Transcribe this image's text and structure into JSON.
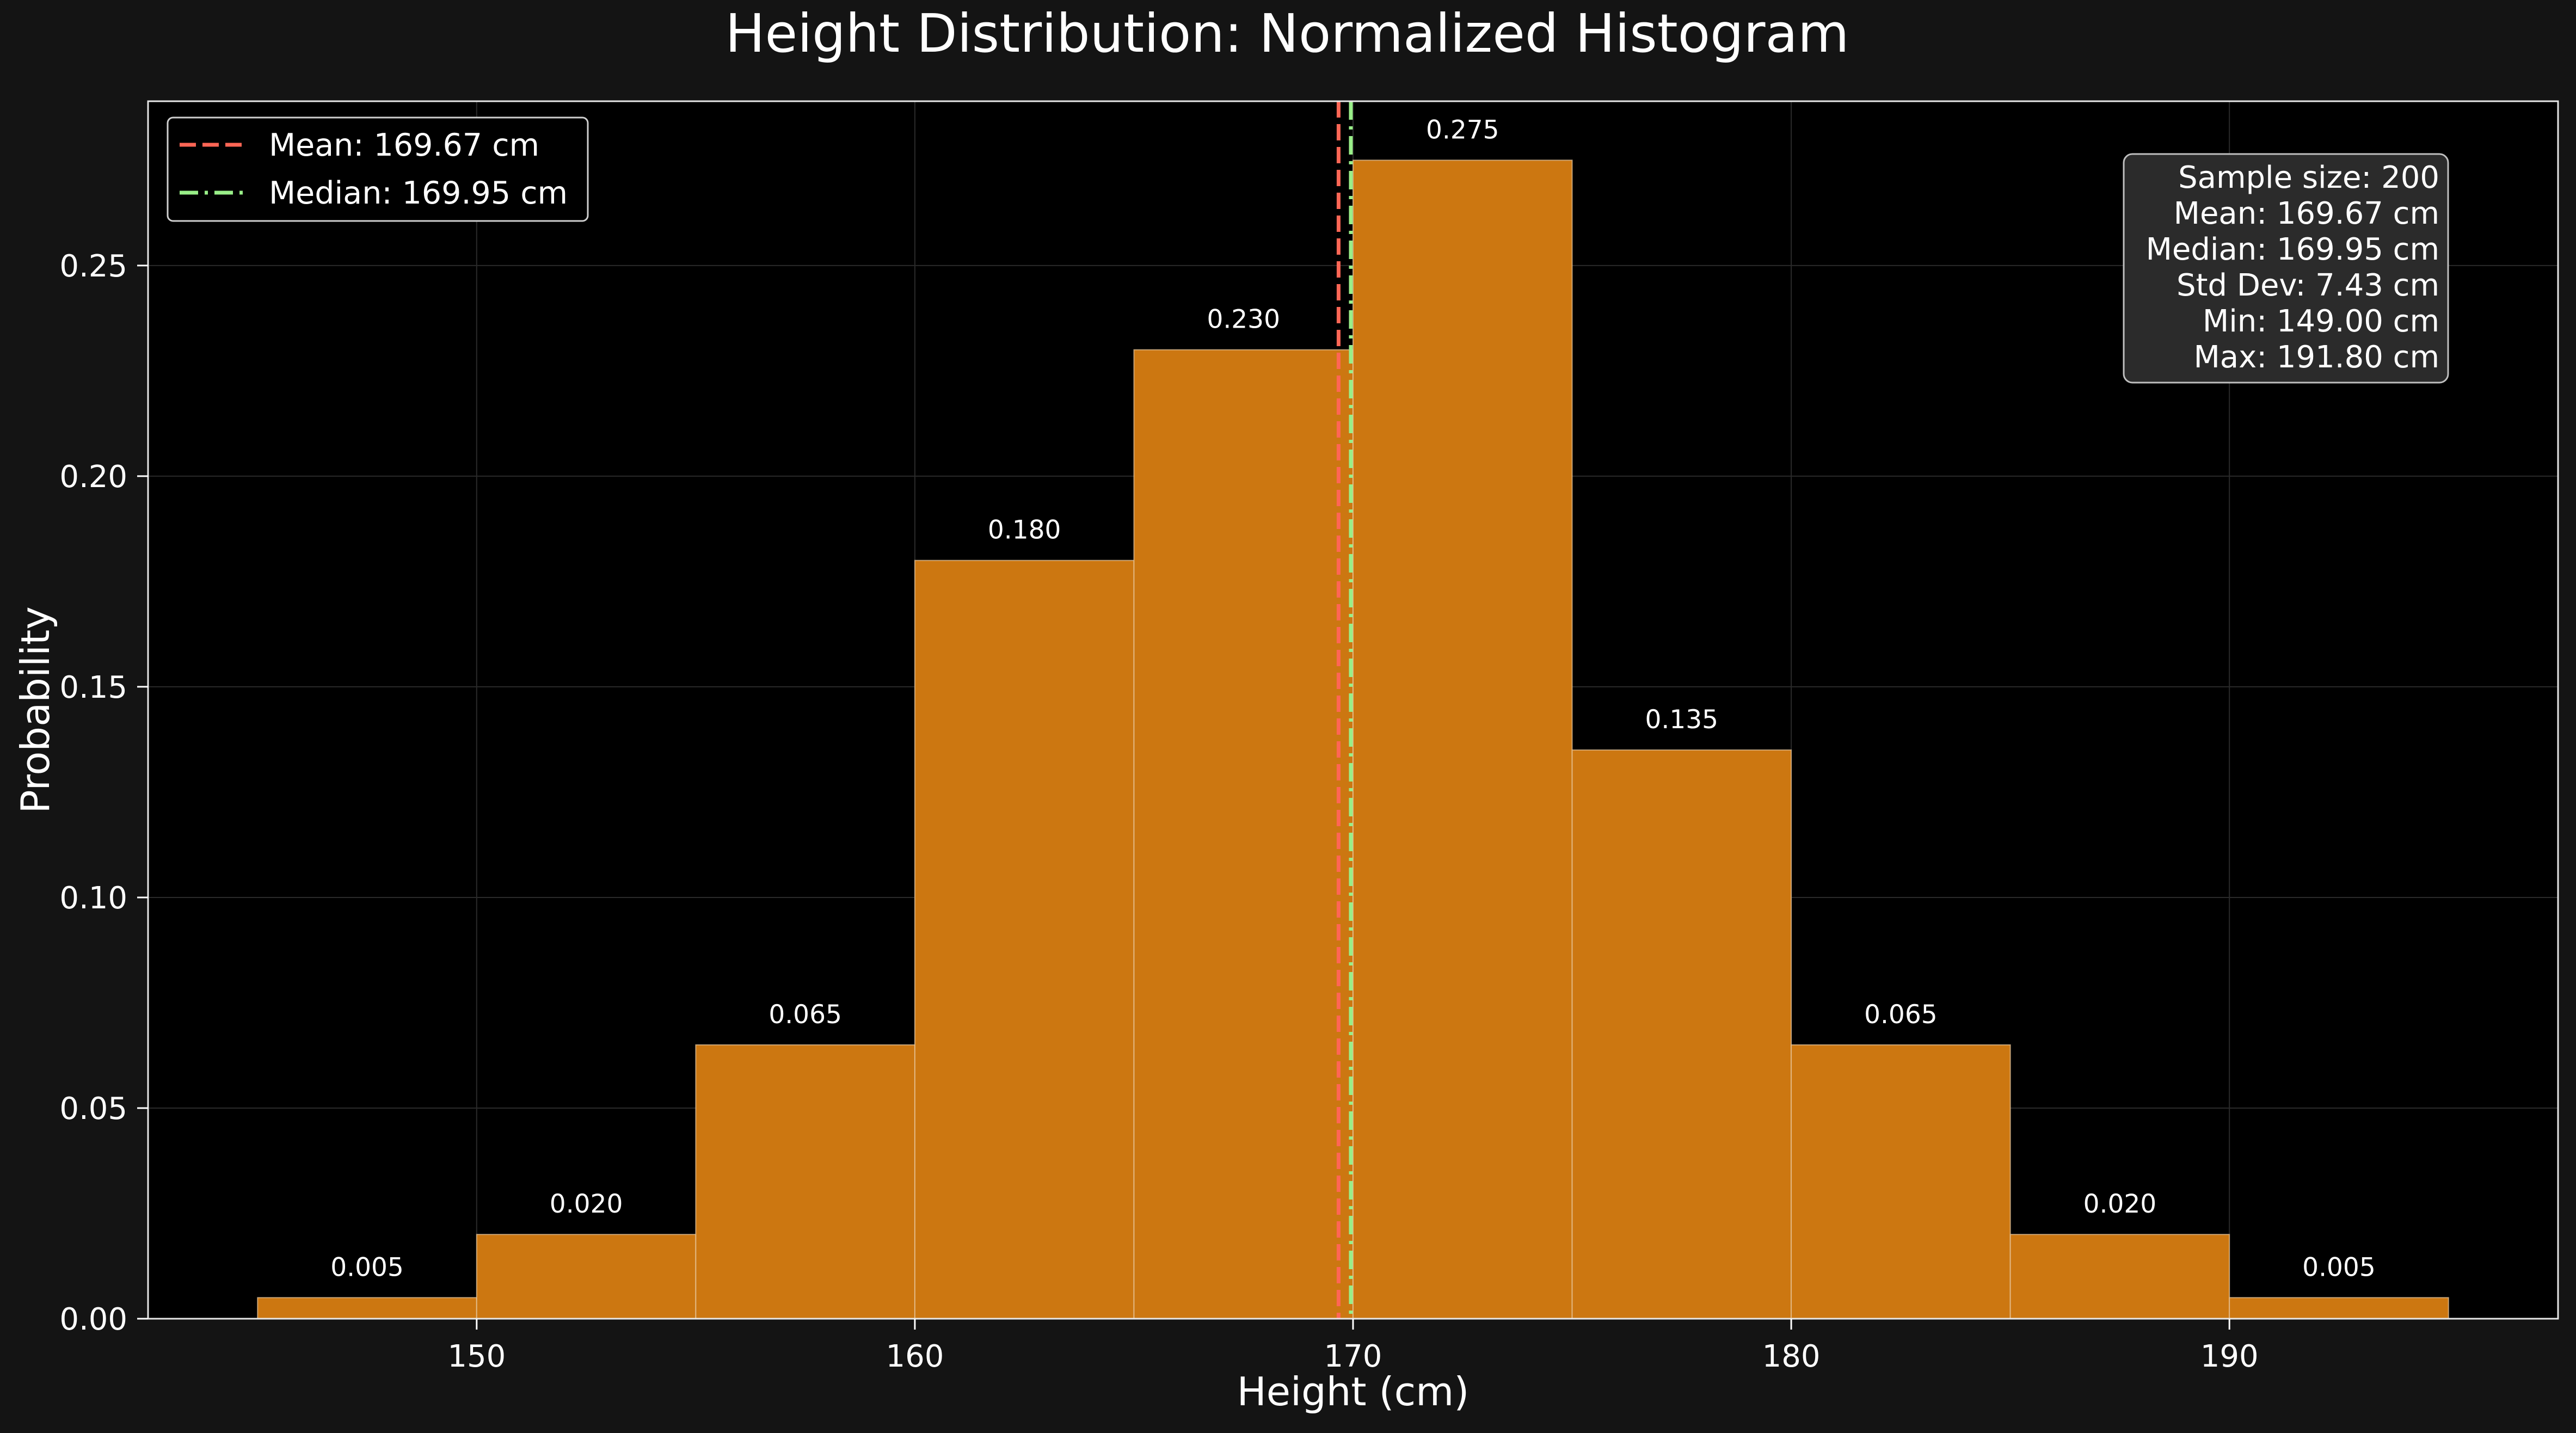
{
  "colors": {
    "background": "#141414",
    "plot_background": "#000000",
    "bar_fill": "#cc7711",
    "bar_edge": "#e8c9a0",
    "mean_line": "#ff6655",
    "median_line": "#99ee88",
    "text": "#ffffff",
    "grid": "#2a2a2a",
    "stats_box_bg": "#2b2b2b"
  },
  "chart_data": {
    "type": "bar",
    "title": "Height Distribution: Normalized Histogram",
    "xlabel": "Height (cm)",
    "ylabel": "Probability",
    "xlim": [
      142.5,
      197.5
    ],
    "ylim": [
      0,
      0.289
    ],
    "grid": true,
    "bin_width": 5,
    "bins": [
      {
        "start": 145,
        "end": 150,
        "value": 0.005,
        "label": "0.005"
      },
      {
        "start": 150,
        "end": 155,
        "value": 0.02,
        "label": "0.020"
      },
      {
        "start": 155,
        "end": 160,
        "value": 0.065,
        "label": "0.065"
      },
      {
        "start": 160,
        "end": 165,
        "value": 0.18,
        "label": "0.180"
      },
      {
        "start": 165,
        "end": 170,
        "value": 0.23,
        "label": "0.230"
      },
      {
        "start": 170,
        "end": 175,
        "value": 0.275,
        "label": "0.275"
      },
      {
        "start": 175,
        "end": 180,
        "value": 0.135,
        "label": "0.135"
      },
      {
        "start": 180,
        "end": 185,
        "value": 0.065,
        "label": "0.065"
      },
      {
        "start": 185,
        "end": 190,
        "value": 0.02,
        "label": "0.020"
      },
      {
        "start": 190,
        "end": 195,
        "value": 0.005,
        "label": "0.005"
      }
    ],
    "x_ticks": [
      {
        "value": 150,
        "label": "150"
      },
      {
        "value": 160,
        "label": "160"
      },
      {
        "value": 170,
        "label": "170"
      },
      {
        "value": 180,
        "label": "180"
      },
      {
        "value": 190,
        "label": "190"
      }
    ],
    "y_ticks": [
      {
        "value": 0.0,
        "label": "0.00"
      },
      {
        "value": 0.05,
        "label": "0.05"
      },
      {
        "value": 0.1,
        "label": "0.10"
      },
      {
        "value": 0.15,
        "label": "0.15"
      },
      {
        "value": 0.2,
        "label": "0.20"
      },
      {
        "value": 0.25,
        "label": "0.25"
      }
    ],
    "reference_lines": [
      {
        "name": "Mean: 169.67 cm",
        "value": 169.67,
        "style": "dashed",
        "color": "#ff6655"
      },
      {
        "name": "Median: 169.95 cm",
        "value": 169.95,
        "style": "dashdot",
        "color": "#99ee88"
      }
    ],
    "legend_position": "upper-left",
    "stats_box_position": "upper-right",
    "stats_box": [
      "Sample size: 200",
      "Mean: 169.67 cm",
      "Median: 169.95 cm",
      "Std Dev: 7.43 cm",
      "Min: 149.00 cm",
      "Max: 191.80 cm"
    ]
  }
}
